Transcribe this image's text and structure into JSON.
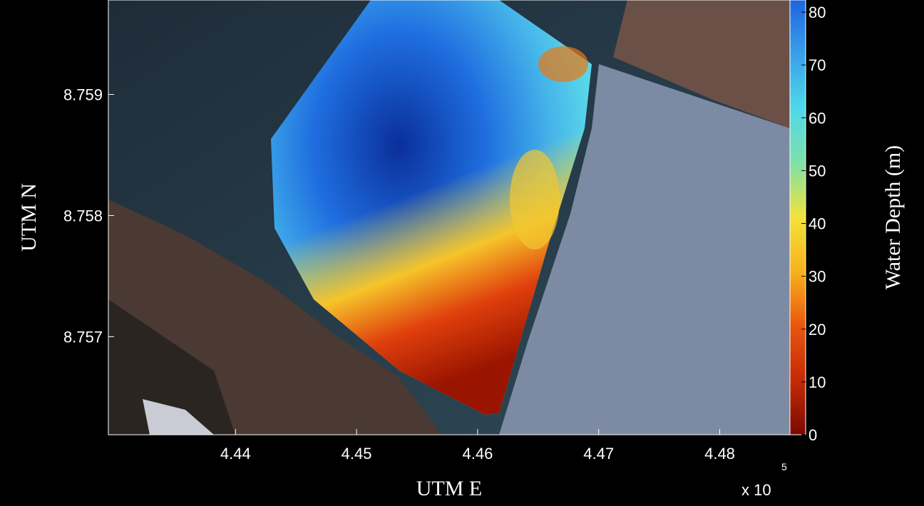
{
  "chart_data": {
    "type": "map",
    "xlabel": "UTM E",
    "ylabel": "UTM N",
    "x_exponent_base": "x 10",
    "x_exponent_power": "5",
    "xlim": [
      4.4295,
      4.4858
    ],
    "ylim": [
      8.75619,
      8.75978
    ],
    "xticks": [
      4.44,
      4.45,
      4.46,
      4.47,
      4.48
    ],
    "yticks": [
      8.757,
      8.758,
      8.759
    ],
    "colorbar": {
      "label": "Water Depth (m)",
      "lim": [
        0,
        82.3
      ],
      "ticks": [
        0,
        10,
        20,
        30,
        40,
        50,
        60,
        70,
        80
      ],
      "colormap": [
        "#7a0a00",
        "#c42a06",
        "#e9560f",
        "#f7b11d",
        "#f3e33a",
        "#7fe0a8",
        "#4fd8ea",
        "#3aa0ea",
        "#1d64e0"
      ]
    }
  }
}
